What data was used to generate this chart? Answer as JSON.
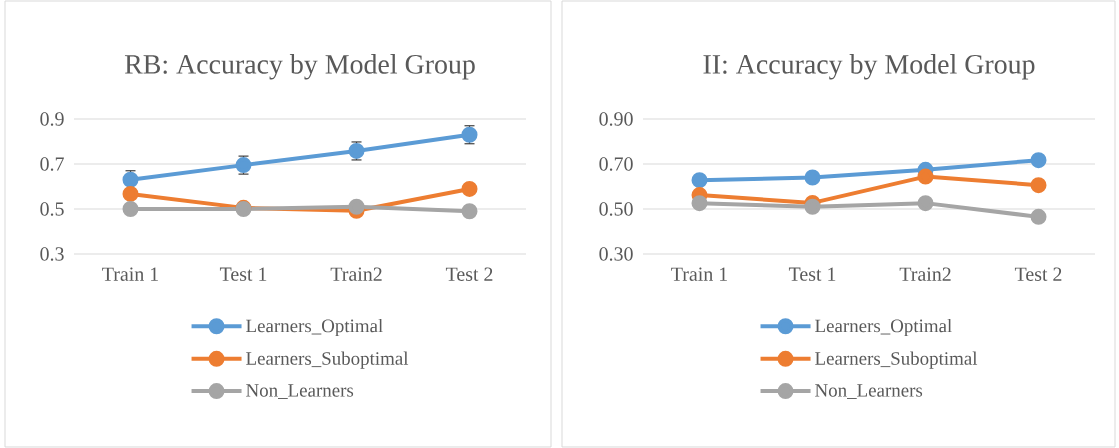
{
  "chart_data": [
    {
      "type": "line",
      "title": "RB: Accuracy by Model Group",
      "categories": [
        "Train 1",
        "Test 1",
        "Train2",
        "Test 2"
      ],
      "series": [
        {
          "name": "Learners_Optimal",
          "color": "#5b9bd5",
          "values": [
            0.63,
            0.695,
            0.758,
            0.83
          ],
          "errors": [
            0.04,
            0.04,
            0.04,
            0.04
          ]
        },
        {
          "name": "Learners_Suboptimal",
          "color": "#ed7d31",
          "values": [
            0.567,
            0.505,
            0.492,
            0.589
          ]
        },
        {
          "name": "Non_Learners",
          "color": "#a5a5a5",
          "values": [
            0.5,
            0.5,
            0.51,
            0.49
          ]
        }
      ],
      "ylim": [
        0.3,
        0.9
      ],
      "yticks": [
        0.3,
        0.5,
        0.7,
        0.9
      ],
      "grid": "y",
      "legend": "bottom",
      "marker": "circle"
    },
    {
      "type": "line",
      "title": "II: Accuracy by Model Group",
      "categories": [
        "Train 1",
        "Test 1",
        "Train2",
        "Test 2"
      ],
      "series": [
        {
          "name": "Learners_Optimal",
          "color": "#5b9bd5",
          "values": [
            0.628,
            0.64,
            0.674,
            0.717
          ]
        },
        {
          "name": "Learners_Suboptimal",
          "color": "#ed7d31",
          "values": [
            0.562,
            0.527,
            0.644,
            0.606
          ]
        },
        {
          "name": "Non_Learners",
          "color": "#a5a5a5",
          "values": [
            0.526,
            0.51,
            0.526,
            0.465
          ]
        }
      ],
      "ylim": [
        0.3,
        0.9
      ],
      "yticks": [
        {
          "value": 0.3,
          "label": "0.30"
        },
        {
          "value": 0.5,
          "label": "0.50"
        },
        {
          "value": 0.7,
          "label": "0.70"
        },
        {
          "value": 0.9,
          "label": "0.90"
        }
      ],
      "grid": "y",
      "legend": "bottom",
      "marker": "circle"
    }
  ]
}
